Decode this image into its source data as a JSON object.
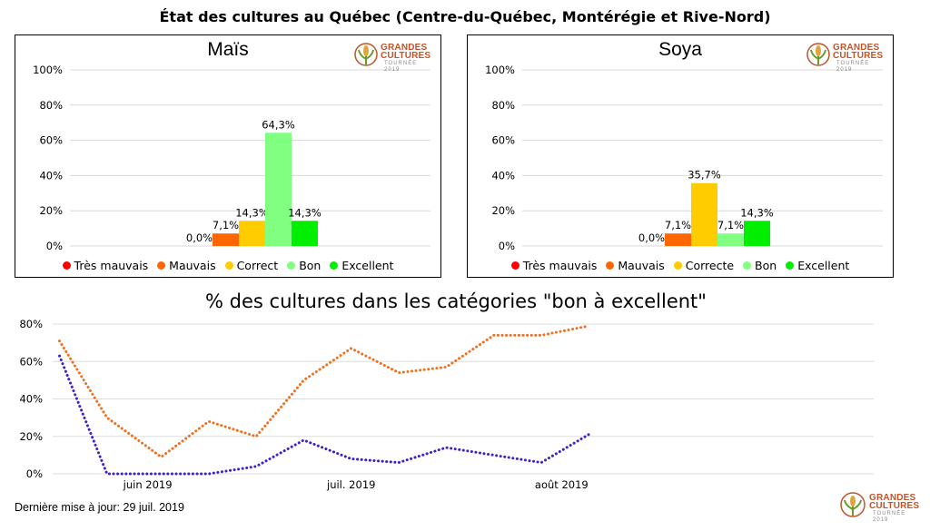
{
  "main_title": "État des cultures au Québec (Centre-du-Québec, Montérégie et Rive-Nord)",
  "logo": {
    "line1": "GRANDES",
    "line2": "CULTURES",
    "line3": "TOURNÉE 2019",
    "icon": "corn-plant-icon"
  },
  "colors": {
    "tres_mauvais": "#ff0000",
    "mauvais": "#ff6600",
    "correct": "#ffcc00",
    "bon": "#80ff80",
    "excellent": "#00ee00",
    "series_orange": "#f07020",
    "series_blue": "#3c22cc"
  },
  "chart_data": [
    {
      "type": "bar",
      "title": "Maïs",
      "categories": [
        "Très mauvais",
        "Mauvais",
        "Correct",
        "Bon",
        "Excellent"
      ],
      "values": [
        0.0,
        7.1,
        14.3,
        64.3,
        14.3
      ],
      "value_labels": [
        "0,0%",
        "7,1%",
        "14,3%",
        "64,3%",
        "14,3%"
      ],
      "y_ticks": [
        "100%",
        "80%",
        "60%",
        "40%",
        "20%",
        "0%"
      ],
      "ylim": [
        0,
        100
      ],
      "grid": true,
      "legend": "bottom"
    },
    {
      "type": "bar",
      "title": "Soya",
      "categories": [
        "Très mauvais",
        "Mauvais",
        "Correcte",
        "Bon",
        "Excellent"
      ],
      "values": [
        0.0,
        7.1,
        35.7,
        7.1,
        14.3
      ],
      "value_labels": [
        "0,0%",
        "7,1%",
        "35,7%",
        "7,1%",
        "14,3%"
      ],
      "y_ticks": [
        "100%",
        "80%",
        "60%",
        "40%",
        "20%",
        "0%"
      ],
      "ylim": [
        0,
        100
      ],
      "grid": true,
      "legend": "bottom"
    },
    {
      "type": "line",
      "title": "% des cultures dans les catégories \"bon à excellent\"",
      "x_ticks": [
        "juin 2019",
        "juil. 2019",
        "août 2019"
      ],
      "x_tick_dates": [
        "2019-06-01",
        "2019-07-01",
        "2019-08-01"
      ],
      "x_range": [
        "2019-05-18",
        "2019-09-16"
      ],
      "y_ticks": [
        "80%",
        "60%",
        "40%",
        "20%",
        "0%"
      ],
      "ylim": [
        0,
        80
      ],
      "grid": true,
      "series": [
        {
          "color": "orange",
          "style": "dotted",
          "points": [
            [
              "2019-05-19",
              71
            ],
            [
              "2019-05-26",
              30
            ],
            [
              "2019-06-03",
              9
            ],
            [
              "2019-06-10",
              28
            ],
            [
              "2019-06-17",
              20
            ],
            [
              "2019-06-24",
              50
            ],
            [
              "2019-07-01",
              67
            ],
            [
              "2019-07-08",
              54
            ],
            [
              "2019-07-15",
              57
            ],
            [
              "2019-07-22",
              74
            ],
            [
              "2019-07-29",
              74
            ],
            [
              "2019-08-05",
              79
            ]
          ]
        },
        {
          "color": "blue",
          "style": "dotted",
          "points": [
            [
              "2019-05-19",
              63
            ],
            [
              "2019-05-26",
              0
            ],
            [
              "2019-06-03",
              0
            ],
            [
              "2019-06-10",
              0
            ],
            [
              "2019-06-17",
              4
            ],
            [
              "2019-06-24",
              18
            ],
            [
              "2019-07-01",
              8
            ],
            [
              "2019-07-08",
              6
            ],
            [
              "2019-07-15",
              14
            ],
            [
              "2019-07-22",
              10
            ],
            [
              "2019-07-29",
              6
            ],
            [
              "2019-08-05",
              21
            ]
          ]
        }
      ]
    }
  ],
  "footer": {
    "last_update": "Dernière mise à jour: 29 juil. 2019"
  }
}
